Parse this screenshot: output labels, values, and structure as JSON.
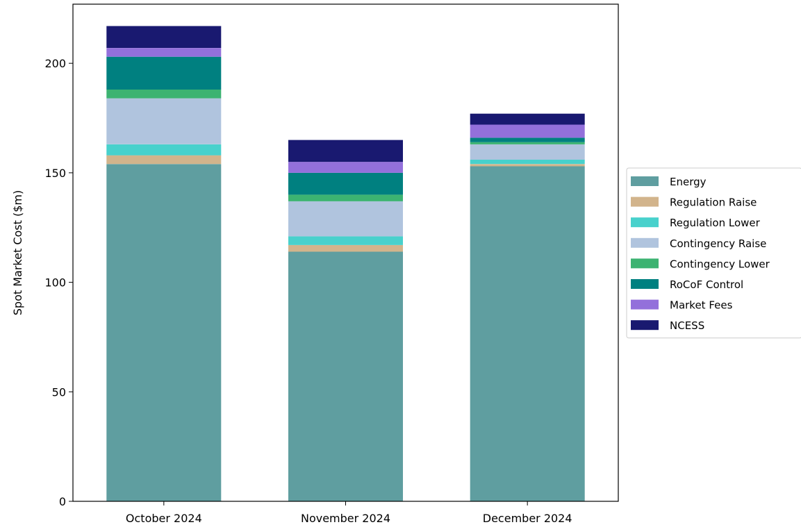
{
  "chart_data": {
    "type": "bar",
    "stacked": true,
    "title": "",
    "xlabel": "",
    "ylabel": "Spot Market Cost ($m)",
    "ylim": [
      0,
      227
    ],
    "yticks": [
      0,
      50,
      100,
      150,
      200
    ],
    "categories": [
      "October 2024",
      "November 2024",
      "December 2024"
    ],
    "legend_position": "right",
    "grid": false,
    "series": [
      {
        "name": "Energy",
        "color": "#5f9ea0",
        "values": [
          154,
          114,
          153
        ]
      },
      {
        "name": "Regulation Raise",
        "color": "#d2b48c",
        "values": [
          4,
          3,
          1
        ]
      },
      {
        "name": "Regulation Lower",
        "color": "#48d1cc",
        "values": [
          5,
          4,
          2
        ]
      },
      {
        "name": "Contingency Raise",
        "color": "#b0c4de",
        "values": [
          21,
          16,
          7
        ]
      },
      {
        "name": "Contingency Lower",
        "color": "#3cb371",
        "values": [
          4,
          3,
          1
        ]
      },
      {
        "name": "RoCoF Control",
        "color": "#008080",
        "values": [
          15,
          10,
          2
        ]
      },
      {
        "name": "Market Fees",
        "color": "#9370db",
        "values": [
          4,
          5,
          6
        ]
      },
      {
        "name": "NCESS",
        "color": "#191970",
        "values": [
          10,
          10,
          5
        ]
      }
    ]
  }
}
